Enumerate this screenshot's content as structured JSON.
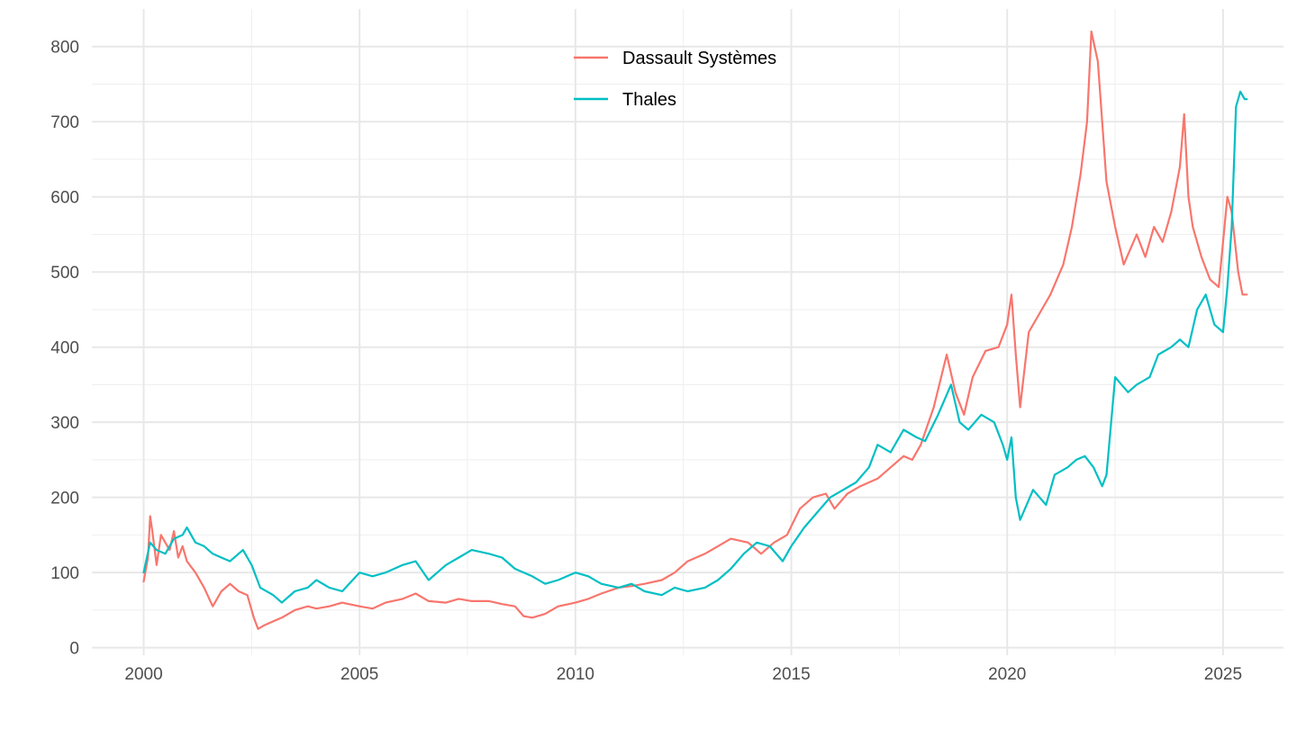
{
  "chart_data": {
    "type": "line",
    "title": "",
    "xlabel": "",
    "ylabel": "",
    "xlim": [
      1998.8,
      2026.4
    ],
    "ylim": [
      -10,
      850
    ],
    "x_ticks": [
      2000,
      2005,
      2010,
      2015,
      2020,
      2025
    ],
    "x_tick_labels": [
      "2000",
      "2005",
      "2010",
      "2015",
      "2020",
      "2025"
    ],
    "y_ticks": [
      0,
      100,
      200,
      300,
      400,
      500,
      600,
      700,
      800
    ],
    "y_tick_labels": [
      "0",
      "100",
      "200",
      "300",
      "400",
      "500",
      "600",
      "700",
      "800"
    ],
    "grid": true,
    "legend_position": "top-center",
    "series": [
      {
        "name": "Dassault Systèmes",
        "color": "#F8766D",
        "x": [
          2000.0,
          2000.1,
          2000.15,
          2000.2,
          2000.3,
          2000.4,
          2000.5,
          2000.6,
          2000.7,
          2000.8,
          2000.9,
          2001.0,
          2001.2,
          2001.4,
          2001.6,
          2001.8,
          2002.0,
          2002.2,
          2002.4,
          2002.55,
          2002.65,
          2002.8,
          2003.0,
          2003.2,
          2003.5,
          2003.8,
          2004.0,
          2004.3,
          2004.6,
          2005.0,
          2005.3,
          2005.6,
          2006.0,
          2006.3,
          2006.6,
          2007.0,
          2007.3,
          2007.6,
          2008.0,
          2008.3,
          2008.6,
          2008.8,
          2009.0,
          2009.3,
          2009.6,
          2010.0,
          2010.3,
          2010.6,
          2011.0,
          2011.3,
          2011.6,
          2012.0,
          2012.3,
          2012.6,
          2013.0,
          2013.3,
          2013.6,
          2014.0,
          2014.3,
          2014.6,
          2014.9,
          2015.2,
          2015.5,
          2015.8,
          2016.0,
          2016.3,
          2016.6,
          2017.0,
          2017.3,
          2017.6,
          2017.8,
          2018.0,
          2018.3,
          2018.6,
          2018.8,
          2019.0,
          2019.2,
          2019.5,
          2019.8,
          2020.0,
          2020.1,
          2020.2,
          2020.3,
          2020.5,
          2020.8,
          2021.0,
          2021.3,
          2021.5,
          2021.7,
          2021.85,
          2021.95,
          2022.1,
          2022.3,
          2022.5,
          2022.7,
          2023.0,
          2023.2,
          2023.4,
          2023.6,
          2023.8,
          2024.0,
          2024.1,
          2024.2,
          2024.3,
          2024.5,
          2024.7,
          2024.9,
          2025.1,
          2025.2,
          2025.35,
          2025.45,
          2025.55
        ],
        "values": [
          88,
          120,
          175,
          155,
          110,
          150,
          140,
          130,
          155,
          120,
          135,
          115,
          100,
          80,
          55,
          75,
          85,
          75,
          70,
          40,
          25,
          30,
          35,
          40,
          50,
          55,
          52,
          55,
          60,
          55,
          52,
          60,
          65,
          72,
          62,
          60,
          65,
          62,
          62,
          58,
          55,
          42,
          40,
          45,
          55,
          60,
          65,
          72,
          80,
          82,
          85,
          90,
          100,
          115,
          125,
          135,
          145,
          140,
          125,
          140,
          150,
          185,
          200,
          205,
          185,
          205,
          215,
          225,
          240,
          255,
          250,
          270,
          320,
          390,
          340,
          310,
          360,
          395,
          400,
          430,
          470,
          390,
          320,
          420,
          450,
          470,
          510,
          560,
          630,
          700,
          820,
          780,
          620,
          560,
          510,
          550,
          520,
          560,
          540,
          580,
          640,
          710,
          600,
          560,
          520,
          490,
          480,
          600,
          580,
          500,
          470,
          470
        ]
      },
      {
        "name": "Thales",
        "color": "#00BFC4",
        "x": [
          2000.0,
          2000.15,
          2000.3,
          2000.5,
          2000.7,
          2000.9,
          2001.0,
          2001.2,
          2001.4,
          2001.6,
          2001.8,
          2002.0,
          2002.3,
          2002.5,
          2002.7,
          2003.0,
          2003.2,
          2003.5,
          2003.8,
          2004.0,
          2004.3,
          2004.6,
          2005.0,
          2005.3,
          2005.6,
          2006.0,
          2006.3,
          2006.6,
          2007.0,
          2007.3,
          2007.6,
          2008.0,
          2008.3,
          2008.6,
          2009.0,
          2009.3,
          2009.6,
          2010.0,
          2010.3,
          2010.6,
          2011.0,
          2011.3,
          2011.6,
          2012.0,
          2012.3,
          2012.6,
          2013.0,
          2013.3,
          2013.6,
          2013.9,
          2014.2,
          2014.5,
          2014.8,
          2015.0,
          2015.3,
          2015.6,
          2015.9,
          2016.2,
          2016.5,
          2016.8,
          2017.0,
          2017.3,
          2017.6,
          2017.9,
          2018.1,
          2018.4,
          2018.7,
          2018.9,
          2019.1,
          2019.4,
          2019.7,
          2019.9,
          2020.0,
          2020.1,
          2020.2,
          2020.3,
          2020.6,
          2020.9,
          2021.1,
          2021.4,
          2021.6,
          2021.8,
          2022.0,
          2022.2,
          2022.3,
          2022.5,
          2022.8,
          2023.0,
          2023.3,
          2023.5,
          2023.8,
          2024.0,
          2024.2,
          2024.4,
          2024.6,
          2024.8,
          2025.0,
          2025.1,
          2025.2,
          2025.3,
          2025.4,
          2025.5,
          2025.55
        ],
        "values": [
          100,
          140,
          130,
          125,
          145,
          150,
          160,
          140,
          135,
          125,
          120,
          115,
          130,
          110,
          80,
          70,
          60,
          75,
          80,
          90,
          80,
          75,
          100,
          95,
          100,
          110,
          115,
          90,
          110,
          120,
          130,
          125,
          120,
          105,
          95,
          85,
          90,
          100,
          95,
          85,
          80,
          85,
          75,
          70,
          80,
          75,
          80,
          90,
          105,
          125,
          140,
          135,
          115,
          135,
          160,
          180,
          200,
          210,
          220,
          240,
          270,
          260,
          290,
          280,
          275,
          310,
          350,
          300,
          290,
          310,
          300,
          270,
          250,
          280,
          200,
          170,
          210,
          190,
          230,
          240,
          250,
          255,
          240,
          215,
          230,
          360,
          340,
          350,
          360,
          390,
          400,
          410,
          400,
          450,
          470,
          430,
          420,
          480,
          560,
          720,
          740,
          730,
          730
        ]
      }
    ]
  }
}
